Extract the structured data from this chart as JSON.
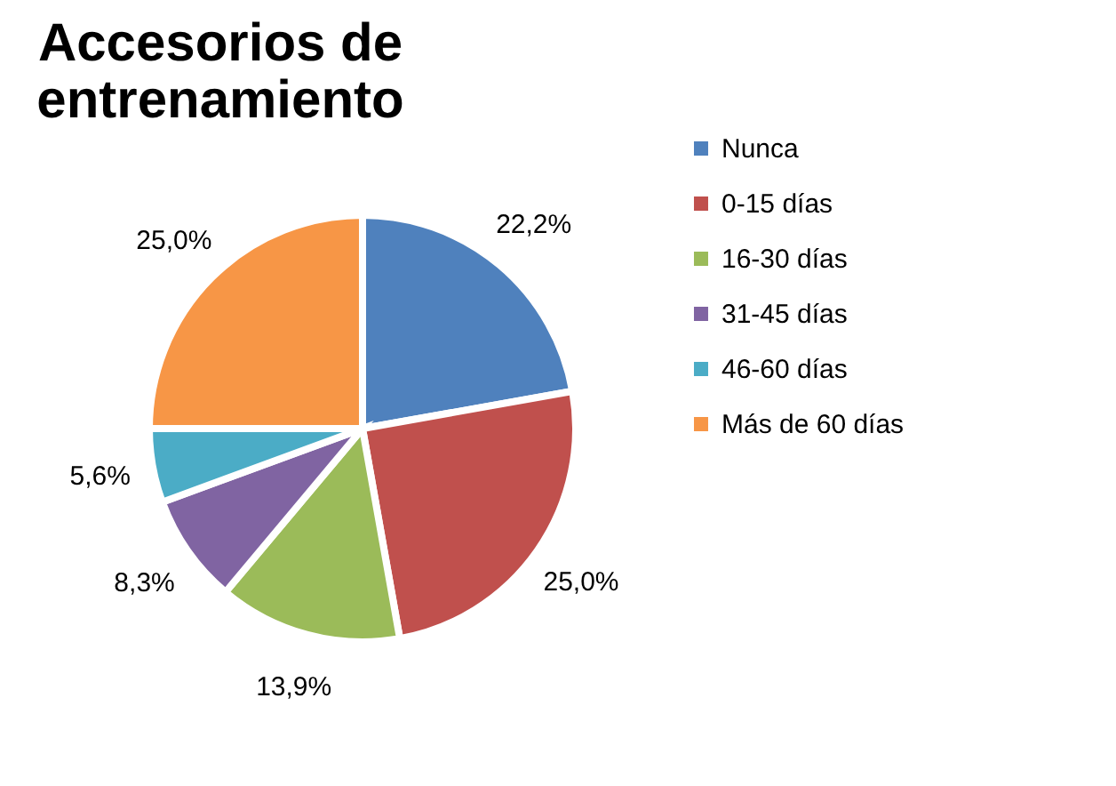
{
  "chart_data": {
    "type": "pie",
    "title": "Accesorios de entrenamiento",
    "categories": [
      "Nunca",
      "0-15 días",
      "16-30 días",
      "31-45 días",
      "46-60 días",
      "Más de 60 días"
    ],
    "values": [
      22.2,
      25.0,
      13.9,
      8.3,
      5.6,
      25.0
    ],
    "value_labels": [
      "22,2%",
      "25,0%",
      "13,9%",
      "8,3%",
      "5,6%",
      "25,0%"
    ],
    "colors": [
      "#4f81bd",
      "#c0504d",
      "#9bbb59",
      "#8064a2",
      "#4bacc6",
      "#f79646"
    ],
    "legend": "right"
  }
}
